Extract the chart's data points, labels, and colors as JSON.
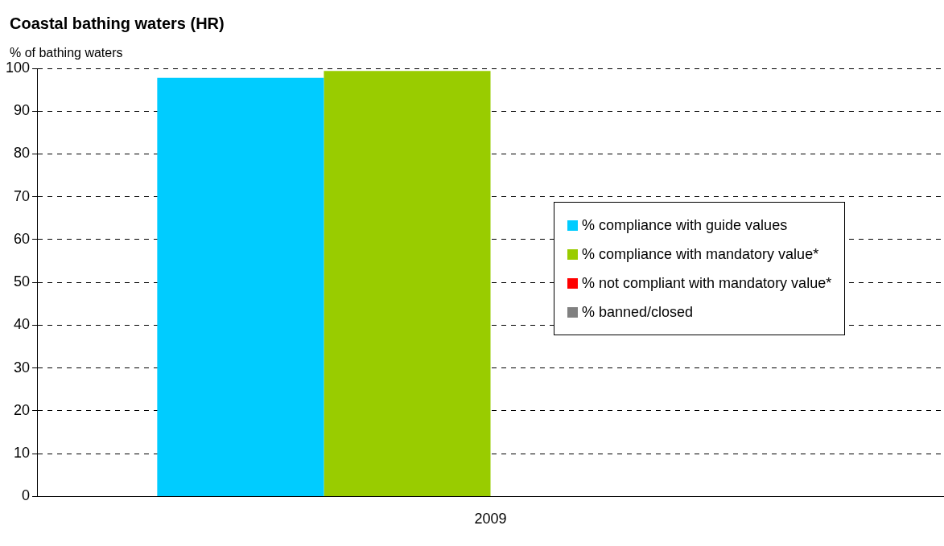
{
  "chart_data": {
    "type": "bar",
    "title": "Coastal bathing waters (HR)",
    "ylabel": "% of bathing waters",
    "categories": [
      "2009"
    ],
    "series": [
      {
        "name": "% compliance with guide values",
        "color": "#00ccff",
        "values": [
          97.8
        ]
      },
      {
        "name": "% compliance with mandatory value*",
        "color": "#99cc00",
        "values": [
          99.4
        ]
      },
      {
        "name": "% not compliant with mandatory value*",
        "color": "#ff0000",
        "values": [
          0
        ]
      },
      {
        "name": "% banned/closed",
        "color": "#808080",
        "values": [
          0
        ]
      }
    ],
    "ylim": [
      0,
      100
    ],
    "yticks": [
      0,
      10,
      20,
      30,
      40,
      50,
      60,
      70,
      80,
      90,
      100
    ],
    "grid": "y",
    "legend": "right"
  }
}
